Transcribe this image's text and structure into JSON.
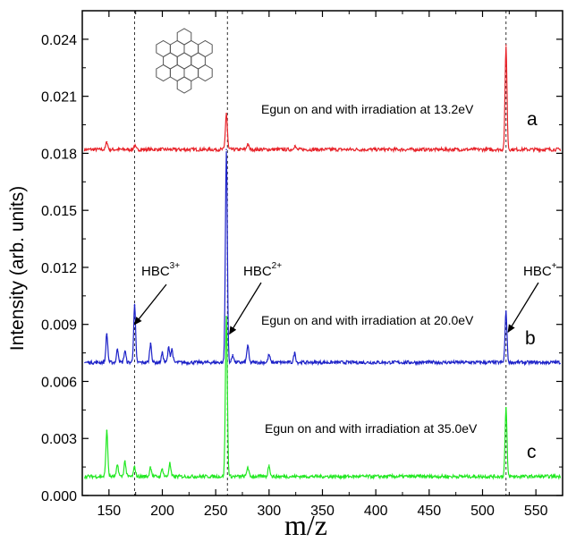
{
  "chart_data": {
    "type": "line",
    "title": "",
    "xlabel": "m/z",
    "ylabel": "Intensity (arb. units)",
    "xlim": [
      125,
      575
    ],
    "ylim": [
      0,
      0.0255
    ],
    "xticks": [
      150,
      200,
      250,
      300,
      350,
      400,
      450,
      500,
      550
    ],
    "xtick_labels": [
      "150",
      "200",
      "250",
      "300",
      "350",
      "400",
      "450",
      "500",
      "550"
    ],
    "yticks": [
      0,
      0.003,
      0.006,
      0.009,
      0.012,
      0.015,
      0.018,
      0.021,
      0.024
    ],
    "ytick_labels": [
      "0.000",
      "0.003",
      "0.006",
      "0.009",
      "0.012",
      "0.015",
      "0.018",
      "0.021",
      "0.024"
    ],
    "grid": false,
    "legend": "none",
    "reference_lines_x": [
      174,
      261,
      522
    ],
    "series": [
      {
        "label": "a",
        "annotation": "Egun on and with irradiation at 13.2eV",
        "color": "#e8232a",
        "baseline": 0.0182,
        "peaks": [
          {
            "x": 148,
            "y": 0.0186
          },
          {
            "x": 174,
            "y": 0.0184
          },
          {
            "x": 260,
            "y": 0.0201
          },
          {
            "x": 280,
            "y": 0.0185
          },
          {
            "x": 324,
            "y": 0.0184
          },
          {
            "x": 522,
            "y": 0.0237
          }
        ]
      },
      {
        "label": "b",
        "annotation": "Egun on and with irradiation at 20.0eV",
        "color": "#1d22c8",
        "baseline": 0.007,
        "peaks": [
          {
            "x": 148,
            "y": 0.0085
          },
          {
            "x": 158,
            "y": 0.0077
          },
          {
            "x": 165,
            "y": 0.0076
          },
          {
            "x": 174,
            "y": 0.01
          },
          {
            "x": 189,
            "y": 0.008
          },
          {
            "x": 200,
            "y": 0.0075
          },
          {
            "x": 206,
            "y": 0.0078
          },
          {
            "x": 209,
            "y": 0.0077
          },
          {
            "x": 260,
            "y": 0.0182
          },
          {
            "x": 266,
            "y": 0.0074
          },
          {
            "x": 280,
            "y": 0.0079
          },
          {
            "x": 300,
            "y": 0.0074
          },
          {
            "x": 324,
            "y": 0.0075
          },
          {
            "x": 522,
            "y": 0.0097
          }
        ]
      },
      {
        "label": "c",
        "annotation": "Egun on and with irradiation at 35.0eV",
        "color": "#22e822",
        "baseline": 0.001,
        "peaks": [
          {
            "x": 148,
            "y": 0.0034
          },
          {
            "x": 158,
            "y": 0.0016
          },
          {
            "x": 165,
            "y": 0.0018
          },
          {
            "x": 174,
            "y": 0.0015
          },
          {
            "x": 189,
            "y": 0.0015
          },
          {
            "x": 200,
            "y": 0.0014
          },
          {
            "x": 207,
            "y": 0.0017
          },
          {
            "x": 260,
            "y": 0.0094
          },
          {
            "x": 280,
            "y": 0.0015
          },
          {
            "x": 300,
            "y": 0.0016
          },
          {
            "x": 522,
            "y": 0.0046
          }
        ]
      }
    ],
    "peak_labels": [
      {
        "base": "HBC",
        "charge": "3+",
        "points_to": {
          "x": 174,
          "y": 0.009
        }
      },
      {
        "base": "HBC",
        "charge": "2+",
        "points_to": {
          "x": 263,
          "y": 0.0085
        }
      },
      {
        "base": "HBC",
        "charge": "+",
        "points_to": {
          "x": 524,
          "y": 0.0086
        }
      }
    ],
    "inset": "hexabenzocoronene molecular structure"
  }
}
